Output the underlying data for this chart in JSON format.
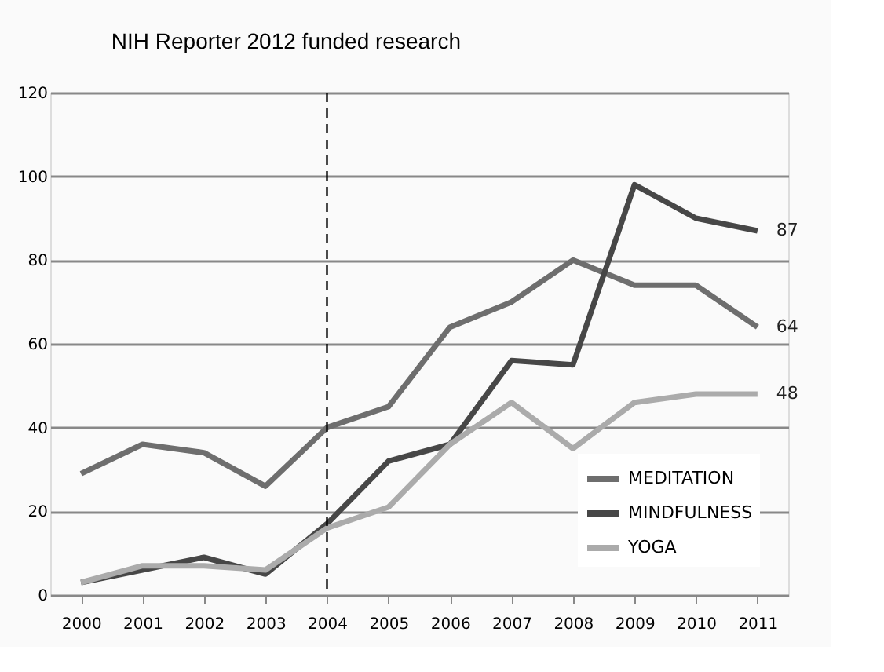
{
  "chart_data": {
    "type": "line",
    "title": "NIH Reporter  2012 funded research",
    "categories": [
      "2000",
      "2001",
      "2002",
      "2003",
      "2004",
      "2005",
      "2006",
      "2007",
      "2008",
      "2009",
      "2010",
      "2011"
    ],
    "series": [
      {
        "name": "MEDITATION",
        "color": "#6e6e6e",
        "values": [
          29,
          36,
          34,
          26,
          40,
          45,
          64,
          70,
          80,
          74,
          74,
          64
        ],
        "value_labels": [
          null,
          null,
          null,
          null,
          null,
          null,
          null,
          null,
          null,
          null,
          null,
          "64"
        ]
      },
      {
        "name": "MINDFULNESS",
        "color": "#474747",
        "values": [
          3,
          6,
          9,
          5,
          17,
          32,
          36,
          56,
          55,
          98,
          90,
          87
        ],
        "value_labels": [
          null,
          null,
          null,
          null,
          null,
          null,
          null,
          null,
          null,
          null,
          null,
          "87"
        ]
      },
      {
        "name": "YOGA",
        "color": "#ababab",
        "values": [
          3,
          7,
          7,
          6,
          16,
          21,
          36,
          46,
          35,
          46,
          48,
          48
        ],
        "value_labels": [
          null,
          null,
          null,
          null,
          null,
          null,
          null,
          null,
          null,
          null,
          null,
          "48"
        ]
      }
    ],
    "ylim": [
      0,
      120
    ],
    "yticks": [
      0,
      20,
      40,
      60,
      80,
      100,
      120
    ],
    "grid": "y",
    "legend": "bottom right",
    "marker": "none",
    "line_style": "solid",
    "ref_lines": [
      {
        "axis": "x",
        "value": "2004",
        "color": "#000000",
        "line_style": "dashed"
      }
    ]
  }
}
